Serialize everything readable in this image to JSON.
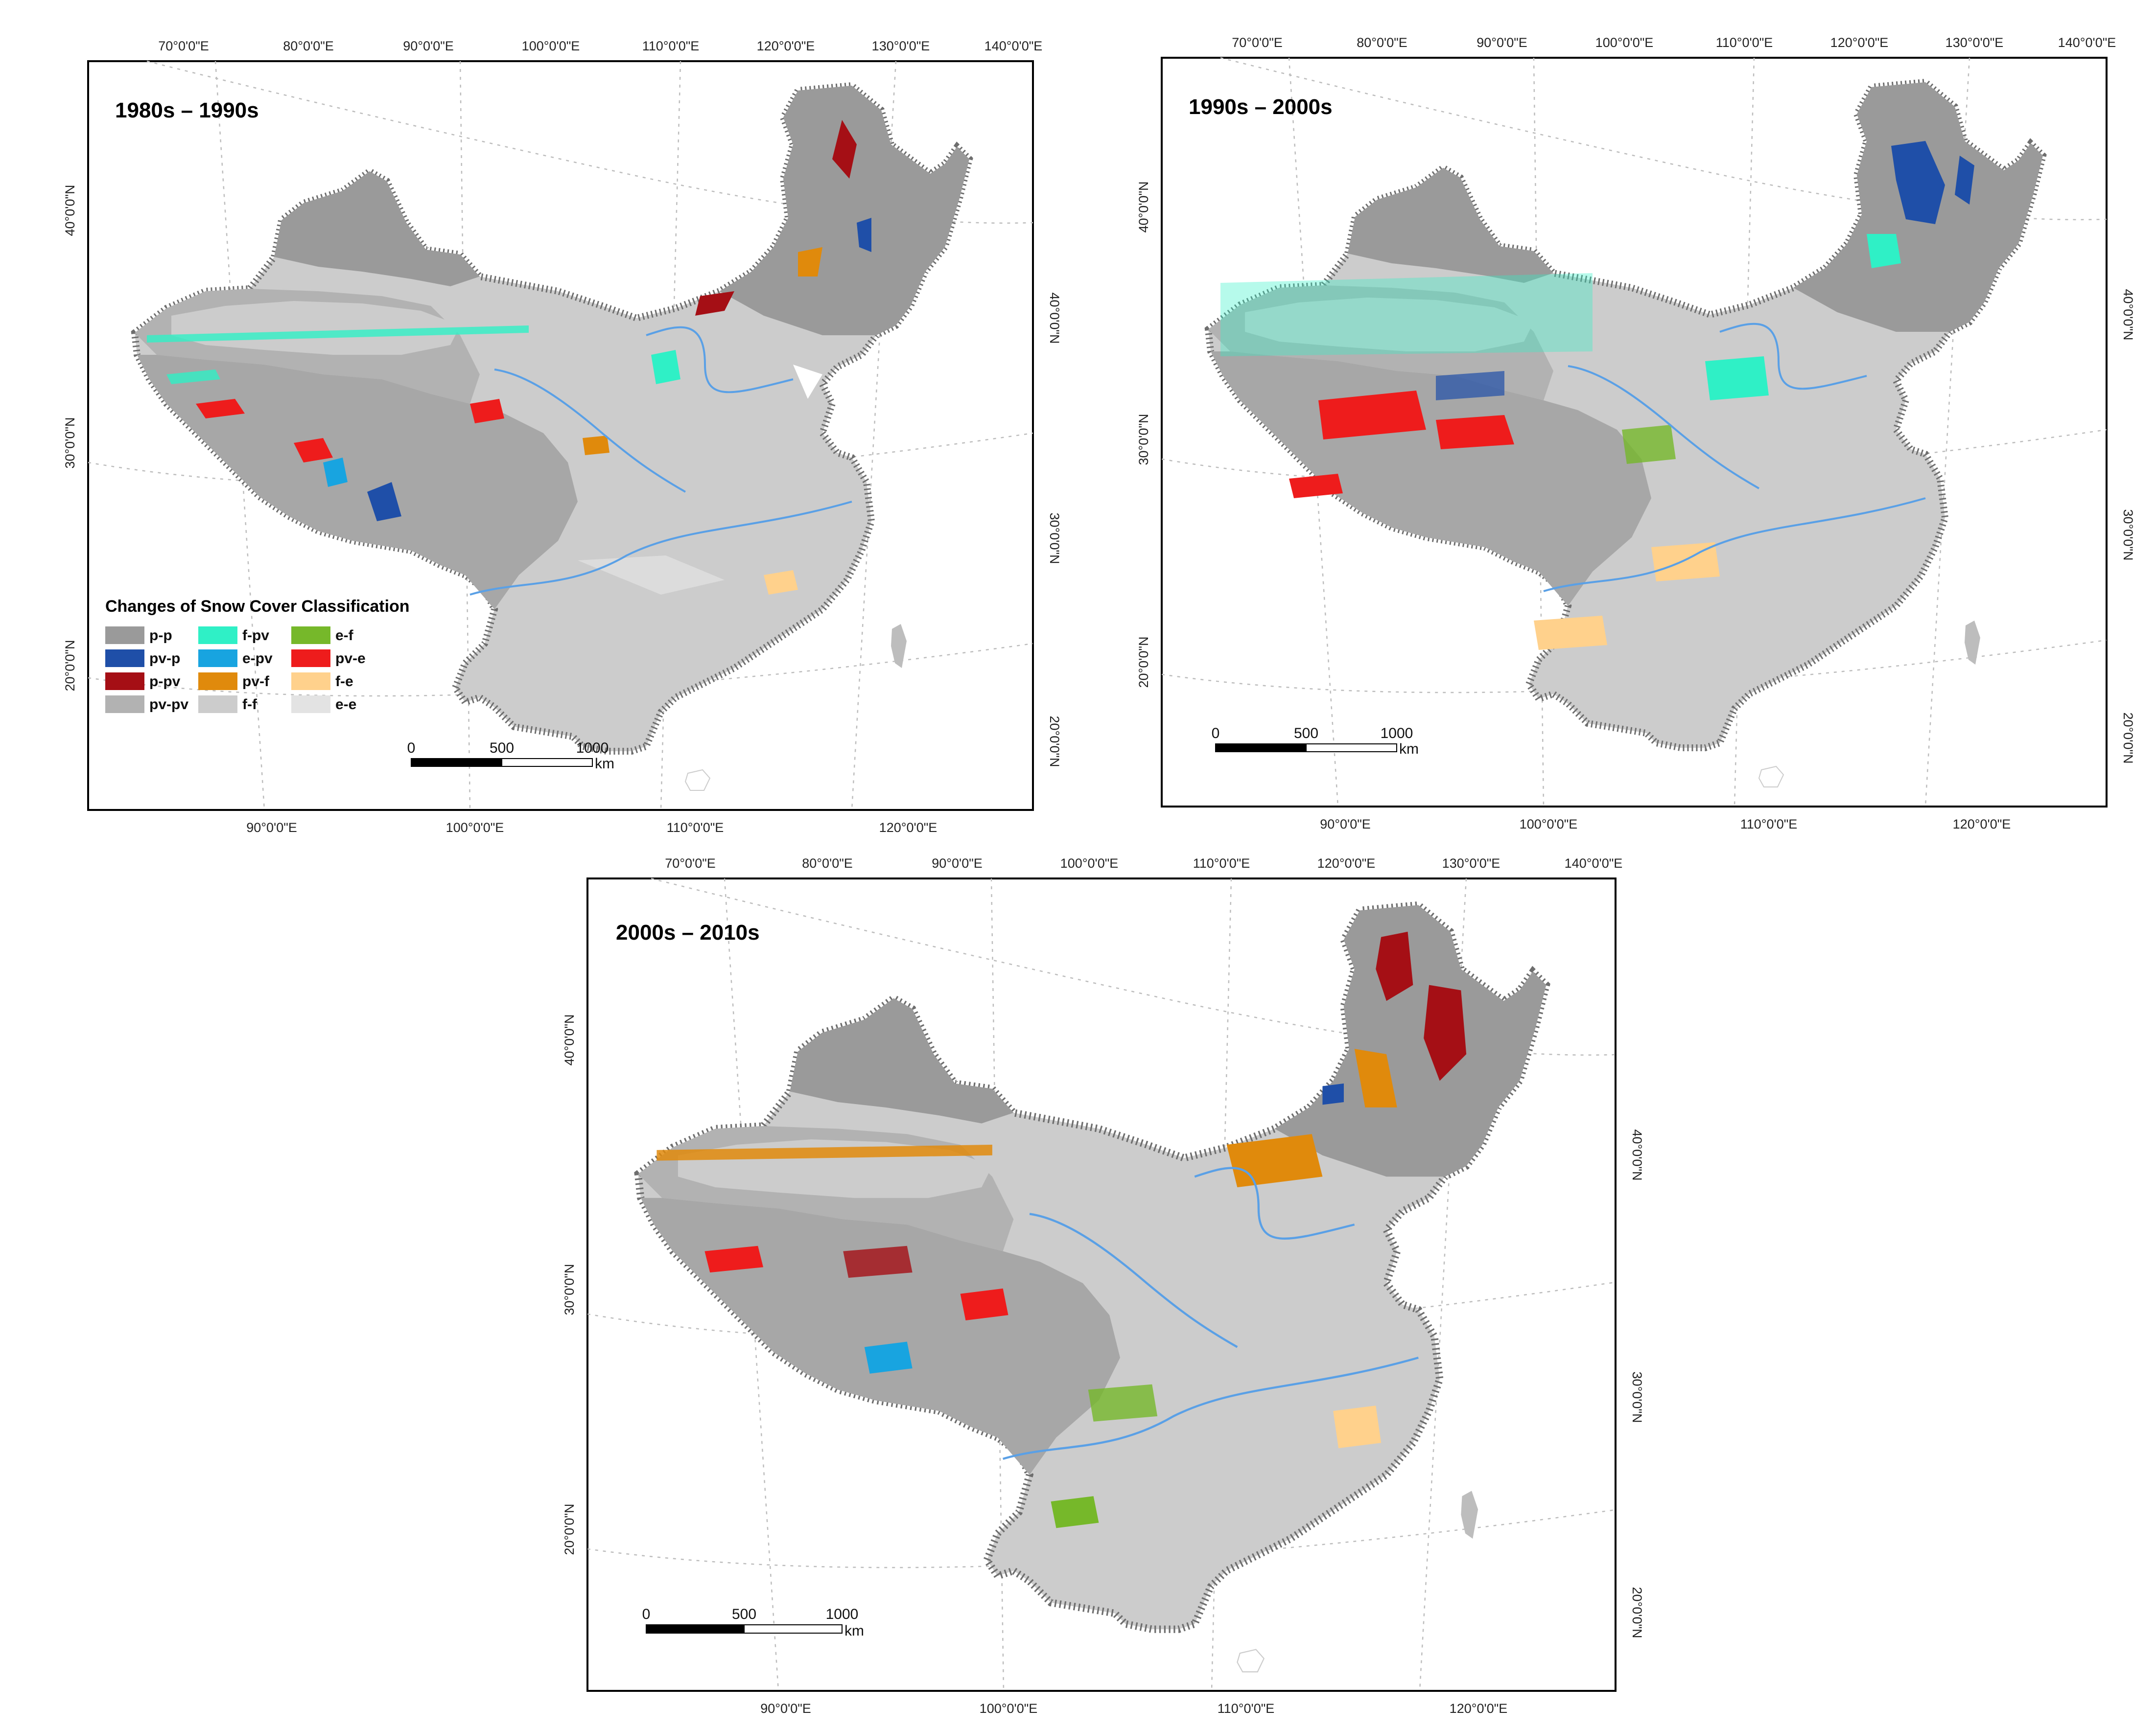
{
  "figure": {
    "panels": [
      {
        "id": "p1",
        "title": "1980s – 1990s",
        "top_lon_labels": [
          "70°0'0\"E",
          "80°0'0\"E",
          "90°0'0\"E",
          "100°0'0\"E",
          "110°0'0\"E",
          "120°0'0\"E",
          "130°0'0\"E",
          "140°0'0\"E"
        ],
        "bottom_lon_labels": [
          "90°0'0\"E",
          "100°0'0\"E",
          "110°0'0\"E",
          "120°0'0\"E"
        ],
        "left_lat_labels": [
          "40°0'0\"N",
          "30°0'0\"N",
          "20°0'0\"N"
        ],
        "right_lat_labels": [
          "40°0'0\"N",
          "30°0'0\"N",
          "20°0'0\"N"
        ],
        "has_legend": true
      },
      {
        "id": "p2",
        "title": "1990s – 2000s",
        "top_lon_labels": [
          "70°0'0\"E",
          "80°0'0\"E",
          "90°0'0\"E",
          "100°0'0\"E",
          "110°0'0\"E",
          "120°0'0\"E",
          "130°0'0\"E",
          "140°0'0\"E"
        ],
        "bottom_lon_labels": [
          "90°0'0\"E",
          "100°0'0\"E",
          "110°0'0\"E",
          "120°0'0\"E"
        ],
        "left_lat_labels": [
          "40°0'0\"N",
          "30°0'0\"N",
          "20°0'0\"N"
        ],
        "right_lat_labels": [
          "40°0'0\"N",
          "30°0'0\"N",
          "20°0'0\"N"
        ],
        "has_legend": false
      },
      {
        "id": "p3",
        "title": "2000s – 2010s",
        "top_lon_labels": [
          "70°0'0\"E",
          "80°0'0\"E",
          "90°0'0\"E",
          "100°0'0\"E",
          "110°0'0\"E",
          "120°0'0\"E",
          "130°0'0\"E",
          "140°0'0\"E"
        ],
        "bottom_lon_labels": [
          "90°0'0\"E",
          "100°0'0\"E",
          "110°0'0\"E",
          "120°0'0\"E"
        ],
        "left_lat_labels": [
          "40°0'0\"N",
          "30°0'0\"N",
          "20°0'0\"N"
        ],
        "right_lat_labels": [
          "40°0'0\"N",
          "30°0'0\"N",
          "20°0'0\"N"
        ],
        "has_legend": false
      }
    ],
    "legend": {
      "title": "Changes of Snow Cover Classification",
      "items": [
        {
          "label": "p-p",
          "color": "#9a9a9a"
        },
        {
          "label": "pv-p",
          "color": "#1f4fa8"
        },
        {
          "label": "p-pv",
          "color": "#a50f15"
        },
        {
          "label": "pv-pv",
          "color": "#b2b2b2"
        },
        {
          "label": "f-pv",
          "color": "#2ff0c6"
        },
        {
          "label": "e-pv",
          "color": "#18a4e0"
        },
        {
          "label": "pv-f",
          "color": "#e08a0c"
        },
        {
          "label": "f-f",
          "color": "#cccccc"
        },
        {
          "label": "e-f",
          "color": "#76b82a"
        },
        {
          "label": "pv-e",
          "color": "#ee1c1c"
        },
        {
          "label": "f-e",
          "color": "#ffd18c"
        },
        {
          "label": "e-e",
          "color": "#e3e3e3"
        }
      ]
    },
    "scale_bar": {
      "ticks": [
        "0",
        "500",
        "1000"
      ],
      "unit": "km"
    },
    "colors": {
      "frame": "#000000",
      "graticule": "#bdbdbd",
      "rivers": "#5aa0e6",
      "border": "#6e6e6e",
      "land_base": "#cccccc"
    }
  }
}
